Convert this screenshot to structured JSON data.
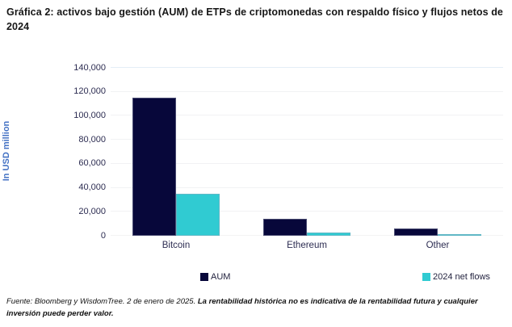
{
  "title": "Gráfica 2: activos bajo gestión (AUM) de ETPs de criptomonedas con respaldo físico y flujos netos de 2024",
  "chart_data": {
    "type": "bar",
    "title": "Gráfica 2: activos bajo gestión (AUM) de ETPs de criptomonedas con respaldo físico y flujos netos de 2024",
    "categories": [
      "Bitcoin",
      "Ethereum",
      "Other"
    ],
    "series": [
      {
        "name": "AUM",
        "color": "#07073A",
        "values": [
          115000,
          14000,
          6000
        ]
      },
      {
        "name": "2024 net flows",
        "color": "#30CBD2",
        "values": [
          35000,
          3000,
          1500
        ]
      }
    ],
    "xlabel": "",
    "ylabel": "In USD million",
    "ylim": [
      0,
      140000
    ],
    "y_tick_step": 20000,
    "y_tick_labels": [
      "0",
      "20,000",
      "40,000",
      "60,000",
      "80,000",
      "100,000",
      "120,000",
      "140,000"
    ],
    "grid": true,
    "legend_position": "bottom"
  },
  "legend": {
    "aum_label": "AUM",
    "net_flows_label": "2024 net flows"
  },
  "footer": {
    "source": "Fuente: Bloomberg y WisdomTree. 2 de enero de 2025.",
    "disclaimer": "La rentabilidad histórica no es indicativa de la rentabilidad futura y cualquier inversión puede perder valor."
  },
  "colors": {
    "aum_bar": "#07073A",
    "net_flows_bar": "#30CBD2",
    "y_axis_title_blue": "#4472C4",
    "tick_text": "#2D2D52",
    "gridline": "#F1F2F4"
  }
}
